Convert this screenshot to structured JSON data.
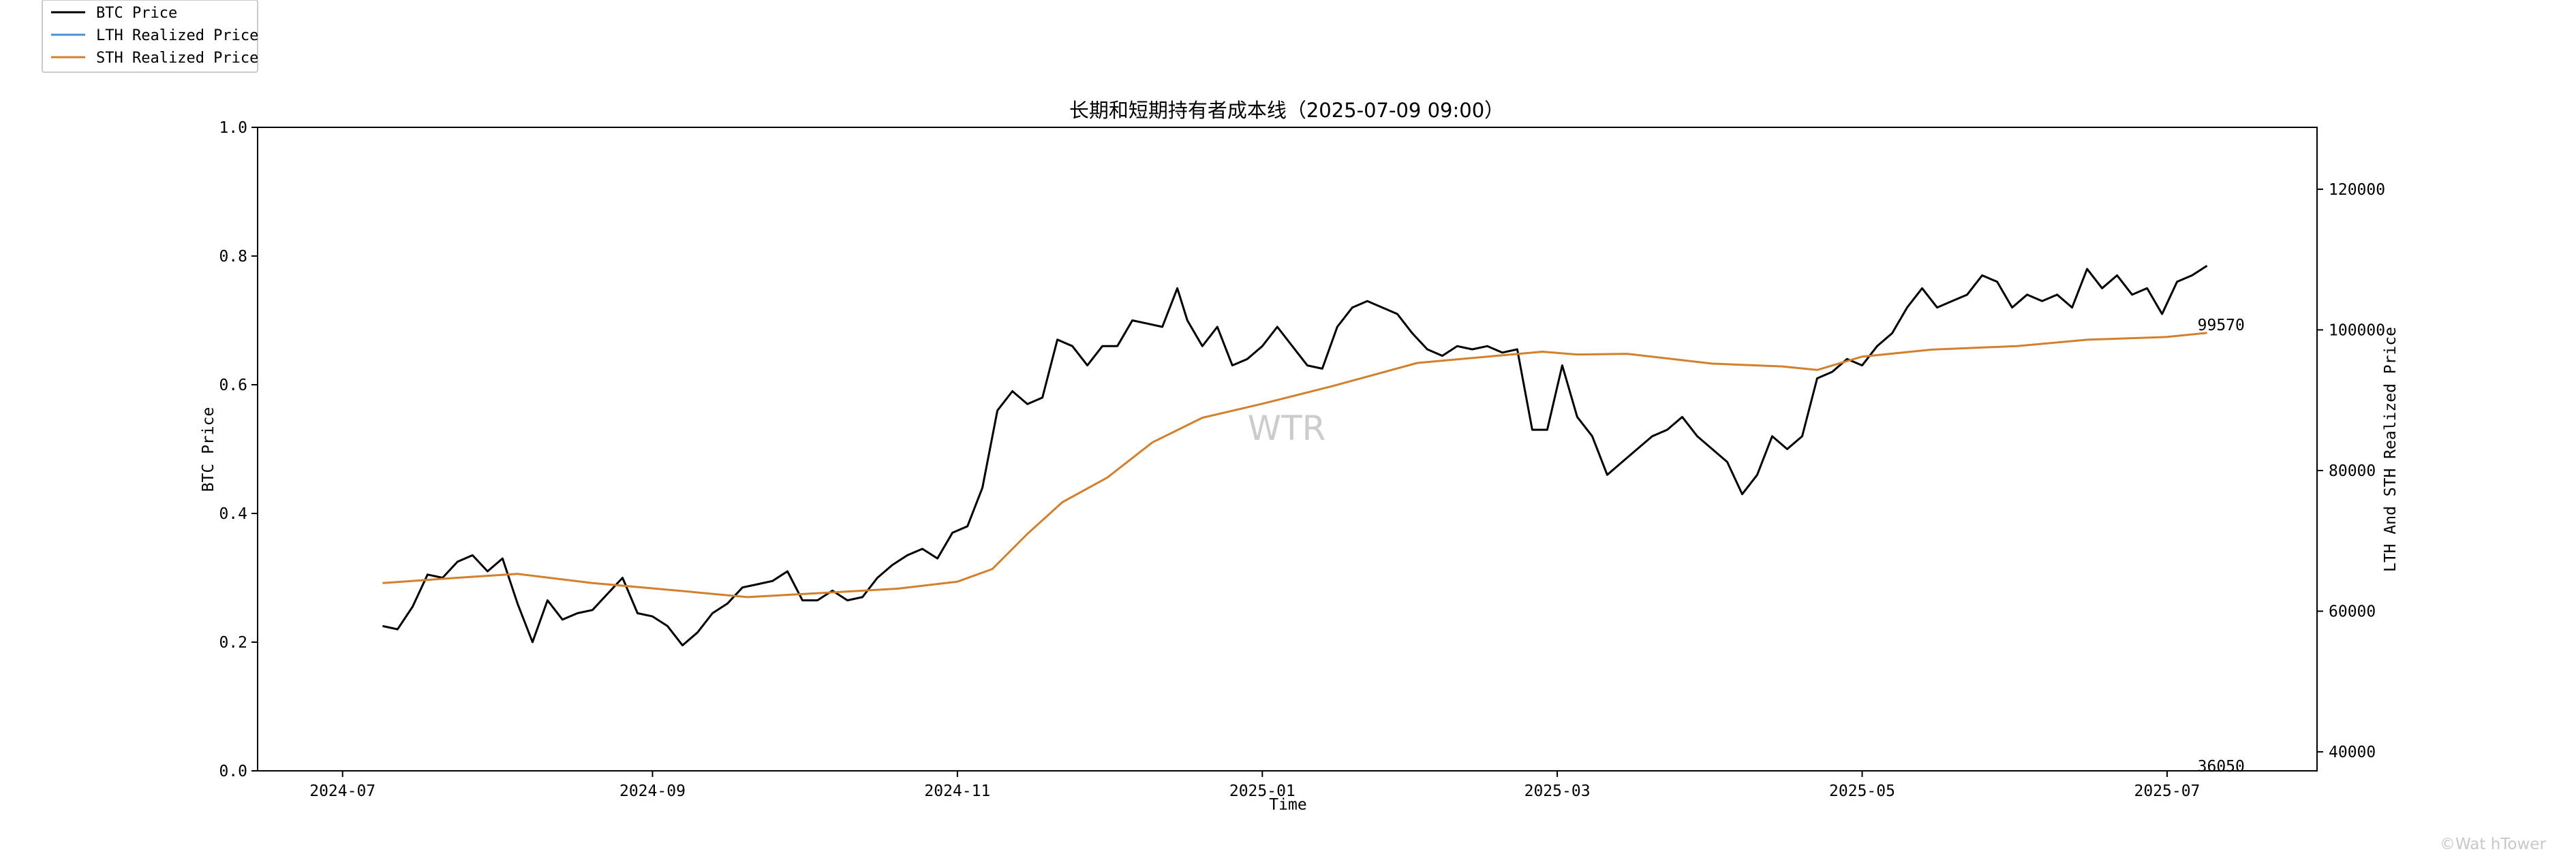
{
  "colors": {
    "btc": "#000000",
    "lth": "#4a90d9",
    "sth": "#d2802b",
    "watermark": "#cccccc"
  },
  "chart_data": {
    "type": "line",
    "title": "长期和短期持有者成本线（2025-07-09 09:00）",
    "xlabel": "Time",
    "ylabel_left": "BTC Price",
    "ylabel_right": "LTH And STH Realized Price",
    "xlim": [
      "2024-06-14",
      "2025-07-31"
    ],
    "ylim_left": [
      0,
      1
    ],
    "ylim_right": [
      37300,
      128800
    ],
    "x_ticks": [
      "2024-07",
      "2024-09",
      "2024-11",
      "2025-01",
      "2025-03",
      "2025-05",
      "2025-07"
    ],
    "y_ticks_left": [
      "0.0",
      "0.2",
      "0.4",
      "0.6",
      "0.8",
      "1.0"
    ],
    "y_ticks_right": [
      "40000",
      "60000",
      "80000",
      "100000",
      "120000"
    ],
    "legend": {
      "position": "top-left",
      "entries": [
        "BTC Price",
        "LTH Realized Price",
        "STH Realized Price"
      ]
    },
    "annotations": [
      {
        "text": "99570",
        "x": "2025-07-09",
        "y": 99570,
        "axis": "right"
      },
      {
        "text": "36050",
        "x": "2025-07-09",
        "y": 36050,
        "axis": "right"
      }
    ],
    "watermark": "WTR",
    "series": [
      {
        "name": "BTC Price",
        "axis": "left",
        "x": [
          "2024-07-09",
          "2024-07-12",
          "2024-07-15",
          "2024-07-18",
          "2024-07-21",
          "2024-07-24",
          "2024-07-27",
          "2024-07-30",
          "2024-08-02",
          "2024-08-05",
          "2024-08-08",
          "2024-08-11",
          "2024-08-14",
          "2024-08-17",
          "2024-08-20",
          "2024-08-23",
          "2024-08-26",
          "2024-08-29",
          "2024-09-01",
          "2024-09-04",
          "2024-09-07",
          "2024-09-10",
          "2024-09-13",
          "2024-09-16",
          "2024-09-19",
          "2024-09-22",
          "2024-09-25",
          "2024-09-28",
          "2024-10-01",
          "2024-10-04",
          "2024-10-07",
          "2024-10-10",
          "2024-10-13",
          "2024-10-16",
          "2024-10-19",
          "2024-10-22",
          "2024-10-25",
          "2024-10-28",
          "2024-10-31",
          "2024-11-03",
          "2024-11-06",
          "2024-11-09",
          "2024-11-12",
          "2024-11-15",
          "2024-11-18",
          "2024-11-21",
          "2024-11-24",
          "2024-11-27",
          "2024-11-30",
          "2024-12-03",
          "2024-12-06",
          "2024-12-09",
          "2024-12-12",
          "2024-12-15",
          "2024-12-17",
          "2024-12-20",
          "2024-12-23",
          "2024-12-26",
          "2024-12-29",
          "2025-01-01",
          "2025-01-04",
          "2025-01-07",
          "2025-01-10",
          "2025-01-13",
          "2025-01-16",
          "2025-01-19",
          "2025-01-22",
          "2025-01-25",
          "2025-01-28",
          "2025-01-31",
          "2025-02-03",
          "2025-02-06",
          "2025-02-09",
          "2025-02-12",
          "2025-02-15",
          "2025-02-18",
          "2025-02-21",
          "2025-02-24",
          "2025-02-27",
          "2025-03-02",
          "2025-03-05",
          "2025-03-08",
          "2025-03-11",
          "2025-03-14",
          "2025-03-17",
          "2025-03-20",
          "2025-03-23",
          "2025-03-26",
          "2025-03-29",
          "2025-04-01",
          "2025-04-04",
          "2025-04-07",
          "2025-04-10",
          "2025-04-13",
          "2025-04-16",
          "2025-04-19",
          "2025-04-22",
          "2025-04-25",
          "2025-04-28",
          "2025-05-01",
          "2025-05-04",
          "2025-05-07",
          "2025-05-10",
          "2025-05-13",
          "2025-05-16",
          "2025-05-19",
          "2025-05-22",
          "2025-05-25",
          "2025-05-28",
          "2025-05-31",
          "2025-06-03",
          "2025-06-06",
          "2025-06-09",
          "2025-06-12",
          "2025-06-15",
          "2025-06-18",
          "2025-06-21",
          "2025-06-24",
          "2025-06-27",
          "2025-06-30",
          "2025-07-03",
          "2025-07-06",
          "2025-07-09"
        ],
        "values": [
          0.225,
          0.22,
          0.255,
          0.305,
          0.3,
          0.325,
          0.335,
          0.31,
          0.33,
          0.26,
          0.2,
          0.265,
          0.235,
          0.245,
          0.25,
          0.275,
          0.3,
          0.245,
          0.24,
          0.225,
          0.195,
          0.215,
          0.245,
          0.26,
          0.285,
          0.29,
          0.295,
          0.31,
          0.265,
          0.265,
          0.28,
          0.265,
          0.27,
          0.3,
          0.32,
          0.335,
          0.345,
          0.33,
          0.37,
          0.38,
          0.44,
          0.56,
          0.59,
          0.57,
          0.58,
          0.67,
          0.66,
          0.63,
          0.66,
          0.66,
          0.7,
          0.695,
          0.69,
          0.75,
          0.7,
          0.66,
          0.69,
          0.63,
          0.64,
          0.66,
          0.69,
          0.66,
          0.63,
          0.625,
          0.69,
          0.72,
          0.73,
          0.72,
          0.71,
          0.68,
          0.655,
          0.645,
          0.66,
          0.655,
          0.66,
          0.65,
          0.655,
          0.53,
          0.53,
          0.63,
          0.55,
          0.52,
          0.46,
          0.48,
          0.5,
          0.52,
          0.53,
          0.55,
          0.52,
          0.5,
          0.48,
          0.43,
          0.46,
          0.52,
          0.5,
          0.52,
          0.61,
          0.62,
          0.64,
          0.63,
          0.66,
          0.68,
          0.72,
          0.75,
          0.72,
          0.73,
          0.74,
          0.77,
          0.76,
          0.72,
          0.74,
          0.73,
          0.74,
          0.72,
          0.78,
          0.75,
          0.77,
          0.74,
          0.75,
          0.71,
          0.76,
          0.77,
          0.785
        ]
      },
      {
        "name": "LTH Realized Price",
        "axis": "right",
        "x": [
          "2024-07-09",
          "2025-07-09"
        ],
        "values": [
          36050,
          36050
        ]
      },
      {
        "name": "STH Realized Price",
        "axis": "right",
        "x": [
          "2024-07-09",
          "2024-07-25",
          "2024-08-05",
          "2024-08-20",
          "2024-09-05",
          "2024-09-20",
          "2024-10-05",
          "2024-10-20",
          "2024-11-01",
          "2024-11-08",
          "2024-11-15",
          "2024-11-22",
          "2024-12-01",
          "2024-12-10",
          "2024-12-20",
          "2025-01-01",
          "2025-01-15",
          "2025-02-01",
          "2025-02-15",
          "2025-02-26",
          "2025-03-05",
          "2025-03-15",
          "2025-04-01",
          "2025-04-15",
          "2025-04-22",
          "2025-05-01",
          "2025-05-15",
          "2025-06-01",
          "2025-06-15",
          "2025-07-01",
          "2025-07-09"
        ],
        "values": [
          64000,
          64800,
          65300,
          64000,
          63000,
          62000,
          62600,
          63200,
          64200,
          66000,
          71000,
          75500,
          79000,
          84000,
          87500,
          89500,
          92000,
          95300,
          96200,
          96900,
          96500,
          96600,
          95200,
          94800,
          94300,
          96200,
          97200,
          97700,
          98600,
          99000,
          99570
        ]
      }
    ]
  }
}
